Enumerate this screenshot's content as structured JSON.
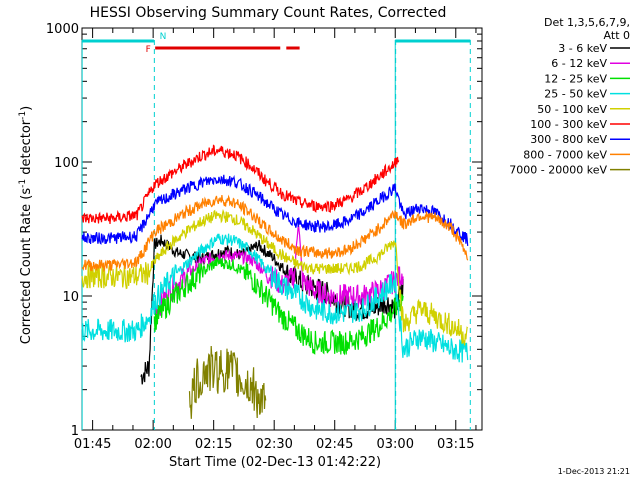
{
  "chart_data": {
    "type": "line",
    "title": "HESSI Observing Summary Count Rates, Corrected",
    "xlabel": "Start Time (02-Dec-13 01:42:22)",
    "ylabel": "Corrected Count Rate (s⁻¹ detector⁻¹)",
    "x_tick_labels": [
      "01:45",
      "02:00",
      "02:15",
      "02:30",
      "02:45",
      "03:00",
      "03:15"
    ],
    "x_tick_minutes": [
      105,
      120,
      135,
      150,
      165,
      180,
      195
    ],
    "xlim_minutes": [
      102.37,
      201.5
    ],
    "y_scale": "log",
    "ylim": [
      1,
      1000
    ],
    "y_tick_labels": [
      "1",
      "10",
      "100",
      "1000"
    ],
    "y_tick_values": [
      1,
      10,
      100,
      1000
    ],
    "legend_header": [
      "Det 1,3,5,6,7,9,",
      "Att 0"
    ],
    "legend_placement": "right",
    "timestamp": "1-Dec-2013 21:21",
    "flags": [
      {
        "label": "N",
        "color": "#00d0d0",
        "segments": [
          [
            102.4,
            120.2
          ],
          [
            180.0,
            198.6
          ]
        ]
      },
      {
        "label": "F",
        "color": "#e00000",
        "segments": [
          [
            120.5,
            151.5
          ],
          [
            153.0,
            156.3
          ]
        ]
      }
    ],
    "night_boundaries_minutes": [
      120.3,
      180.1
    ],
    "series": [
      {
        "name": "3 - 6 keV",
        "color": "#000000",
        "x": [
          117,
          119,
          120.3,
          122,
          126,
          132,
          138,
          142,
          146,
          150,
          154,
          158,
          162,
          166,
          170,
          174,
          178,
          180,
          182
        ],
        "y": [
          2.5,
          3.0,
          24,
          26,
          21,
          19,
          22,
          20,
          24,
          19,
          14,
          12,
          11,
          9,
          8,
          8,
          9,
          8,
          12
        ]
      },
      {
        "name": "6 - 12 keV",
        "color": "#e000e0",
        "x": [
          120.3,
          124,
          128,
          132,
          136,
          140,
          144,
          148,
          152,
          155,
          156,
          157,
          160,
          164,
          168,
          172,
          176,
          180,
          182
        ],
        "y": [
          7.5,
          11,
          14,
          18,
          20,
          20,
          19,
          15,
          12,
          14,
          38,
          13,
          11,
          10,
          10,
          10,
          11,
          13,
          15
        ]
      },
      {
        "name": "12 - 25 keV",
        "color": "#00e000",
        "x": [
          120.3,
          124,
          128,
          132,
          136,
          140,
          144,
          148,
          152,
          156,
          160,
          164,
          168,
          172,
          176,
          180,
          182
        ],
        "y": [
          6.5,
          9,
          12,
          15,
          18,
          17,
          14,
          10,
          7,
          5.5,
          4.5,
          4.5,
          4.5,
          5,
          6,
          8,
          10
        ]
      },
      {
        "name": "25 - 50 keV",
        "color": "#00e0e0",
        "x": [
          102.4,
          116,
          119,
          120.3,
          124,
          128,
          132,
          136,
          140,
          144,
          148,
          152,
          156,
          160,
          164,
          168,
          172,
          176,
          180,
          182,
          186,
          190,
          194,
          198
        ],
        "y": [
          5.5,
          5.5,
          7,
          9,
          13,
          17,
          22,
          27,
          26,
          22,
          16,
          12,
          10,
          8,
          7.5,
          7.5,
          8,
          10,
          13,
          4,
          5,
          4.5,
          4,
          3.8
        ]
      },
      {
        "name": "50 - 100 keV",
        "color": "#d0d000",
        "x": [
          102.4,
          116,
          119,
          120.3,
          124,
          128,
          132,
          136,
          140,
          144,
          148,
          152,
          156,
          160,
          164,
          168,
          172,
          176,
          180,
          182,
          186,
          190,
          194,
          198
        ],
        "y": [
          14,
          14,
          15,
          18,
          24,
          30,
          36,
          40,
          38,
          32,
          25,
          20,
          17,
          16,
          16,
          16,
          17,
          20,
          26,
          6,
          8,
          7,
          6,
          5
        ]
      },
      {
        "name": "100 - 300 keV",
        "color": "#ff0000",
        "x": [
          102.4,
          110,
          116,
          120.3,
          124,
          128,
          132,
          136,
          140,
          144,
          148,
          152,
          156,
          160,
          164,
          168,
          172,
          176,
          180,
          181
        ],
        "y": [
          38,
          38,
          40,
          68,
          80,
          95,
          112,
          123,
          115,
          95,
          72,
          58,
          50,
          47,
          47,
          52,
          62,
          78,
          98,
          115
        ]
      },
      {
        "name": "300 - 800 keV",
        "color": "#0000ff",
        "x": [
          102.4,
          110,
          116,
          120.3,
          124,
          128,
          132,
          136,
          140,
          144,
          148,
          152,
          156,
          160,
          164,
          168,
          172,
          176,
          180,
          182,
          186,
          190,
          194,
          198
        ],
        "y": [
          27,
          27,
          28,
          48,
          55,
          63,
          70,
          75,
          72,
          62,
          50,
          40,
          35,
          33,
          33,
          36,
          42,
          52,
          65,
          40,
          46,
          42,
          34,
          26
        ]
      },
      {
        "name": "800 - 7000 keV",
        "color": "#ff8000",
        "x": [
          102.4,
          110,
          116,
          120.3,
          124,
          128,
          132,
          136,
          140,
          144,
          148,
          152,
          156,
          160,
          164,
          168,
          172,
          176,
          180,
          182,
          186,
          190,
          194,
          198
        ],
        "y": [
          17,
          17,
          18,
          30,
          35,
          42,
          48,
          53,
          50,
          42,
          32,
          26,
          22,
          21,
          21,
          22,
          26,
          32,
          42,
          34,
          40,
          38,
          32,
          20
        ]
      },
      {
        "name": "7000 - 20000 keV",
        "color": "#808000",
        "x": [
          129,
          131,
          133,
          136,
          139,
          142,
          145,
          148
        ],
        "y": [
          1.6,
          2.3,
          2.8,
          2.8,
          2.8,
          2.3,
          2.0,
          1.4
        ]
      }
    ]
  }
}
